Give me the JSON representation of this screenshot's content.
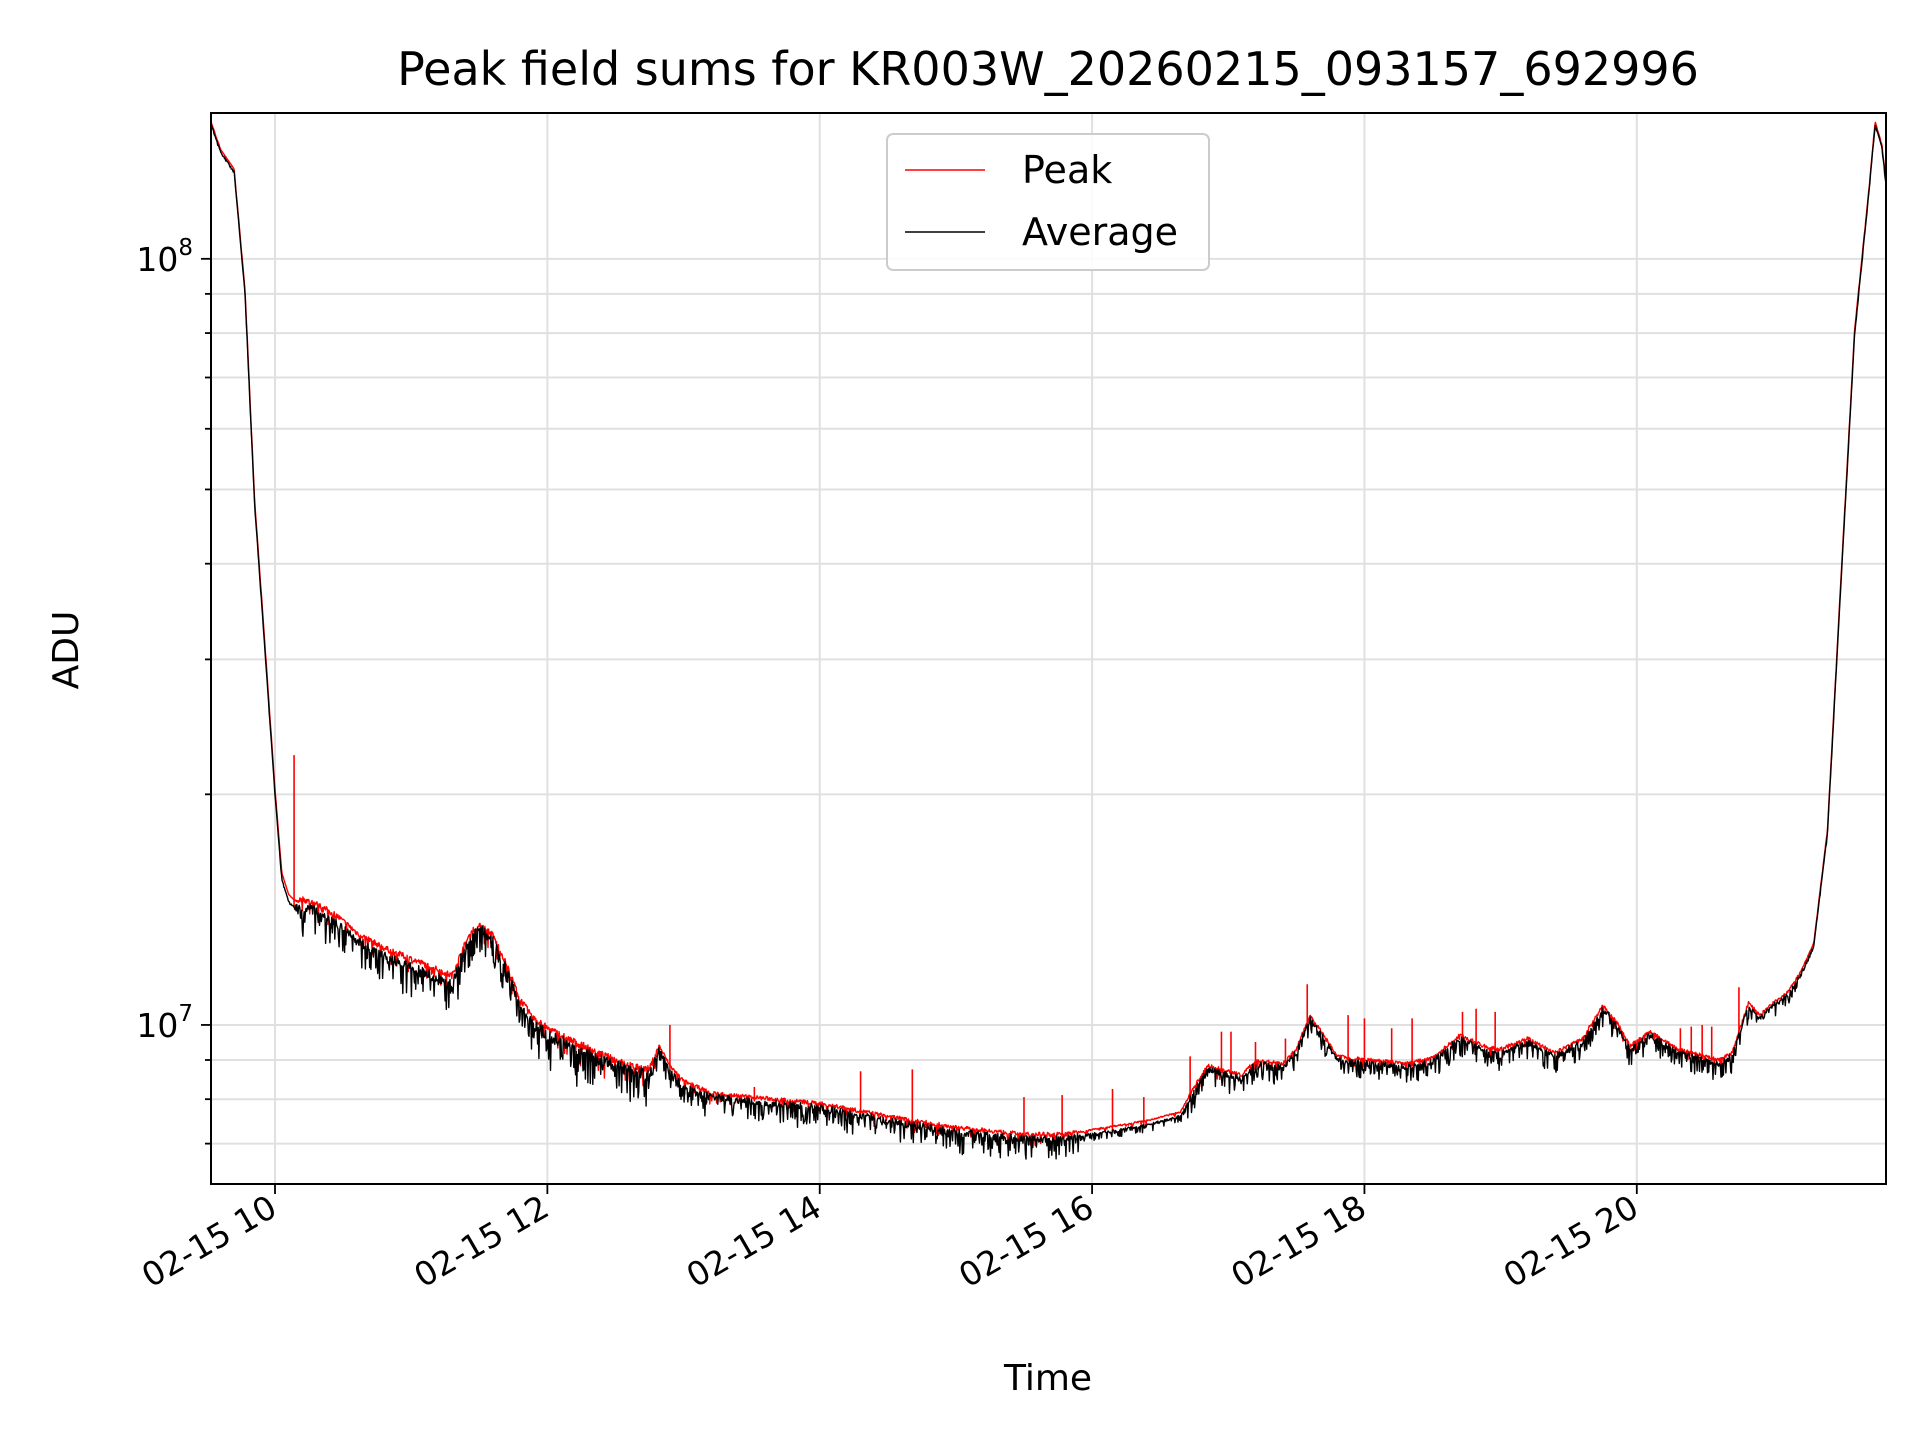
{
  "chart_data": {
    "type": "line",
    "title": "Peak field sums for KR003W_20260215_093157_692996",
    "xlabel": "Time",
    "ylabel": "ADU",
    "yscale": "log",
    "xlim_hours": [
      9.53,
      21.83
    ],
    "ylim": [
      6200000,
      155000000
    ],
    "x_ticks": [
      {
        "value": 10,
        "label": "02-15 10"
      },
      {
        "value": 12,
        "label": "02-15 12"
      },
      {
        "value": 14,
        "label": "02-15 14"
      },
      {
        "value": 16,
        "label": "02-15 16"
      },
      {
        "value": 18,
        "label": "02-15 18"
      },
      {
        "value": 20,
        "label": "02-15 20"
      }
    ],
    "y_major_ticks": [
      {
        "value": 10000000,
        "base": "10",
        "exp": "7"
      },
      {
        "value": 100000000,
        "base": "10",
        "exp": "8"
      }
    ],
    "legend": {
      "position": "upper center",
      "entries": [
        "Peak",
        "Average"
      ]
    },
    "grid": true,
    "colors": {
      "peak": "#ff0000",
      "average": "#000000",
      "grid": "#e0e0e0"
    },
    "series": [
      {
        "name": "Average",
        "x_hours": [
          9.53,
          9.6,
          9.7,
          9.78,
          9.85,
          9.92,
          10.0,
          10.05,
          10.1,
          10.15,
          10.2,
          10.3,
          10.45,
          10.6,
          10.8,
          11.0,
          11.2,
          11.3,
          11.38,
          11.45,
          11.52,
          11.6,
          11.7,
          11.8,
          11.9,
          12.0,
          12.2,
          12.4,
          12.6,
          12.75,
          12.82,
          12.9,
          13.0,
          13.2,
          13.5,
          14.0,
          14.5,
          15.0,
          15.5,
          15.8,
          16.0,
          16.4,
          16.65,
          16.75,
          16.85,
          17.0,
          17.1,
          17.2,
          17.4,
          17.5,
          17.6,
          17.7,
          17.8,
          17.9,
          18.1,
          18.3,
          18.5,
          18.7,
          18.9,
          19.0,
          19.2,
          19.4,
          19.6,
          19.75,
          19.85,
          19.95,
          20.1,
          20.3,
          20.5,
          20.6,
          20.7,
          20.75,
          20.82,
          20.9,
          21.0,
          21.1,
          21.2,
          21.3,
          21.4,
          21.5,
          21.6,
          21.7,
          21.75,
          21.8,
          21.83
        ],
        "y": [
          150000000,
          138000000,
          130000000,
          90000000,
          48000000,
          32000000,
          20000000,
          15500000,
          14500000,
          14200000,
          14300000,
          14100000,
          13600000,
          12900000,
          12300000,
          11900000,
          11500000,
          11300000,
          12400000,
          13100000,
          13300000,
          12900000,
          11800000,
          10600000,
          10000000,
          9700000,
          9350000,
          9000000,
          8700000,
          8600000,
          9300000,
          8700000,
          8300000,
          8050000,
          7950000,
          7800000,
          7500000,
          7250000,
          7100000,
          7100000,
          7200000,
          7400000,
          7600000,
          8200000,
          8750000,
          8600000,
          8500000,
          8900000,
          8800000,
          9200000,
          10200000,
          9600000,
          9000000,
          8950000,
          8900000,
          8800000,
          8950000,
          9600000,
          9250000,
          9200000,
          9500000,
          9100000,
          9500000,
          10500000,
          10000000,
          9300000,
          9700000,
          9200000,
          9000000,
          8900000,
          9100000,
          9700000,
          10600000,
          10200000,
          10600000,
          10900000,
          11600000,
          12700000,
          17800000,
          38000000,
          80000000,
          120000000,
          150000000,
          140000000,
          125000000
        ]
      },
      {
        "name": "Peak",
        "x_hours": [
          9.53,
          9.6,
          9.7,
          9.78,
          9.85,
          9.92,
          10.0,
          10.05,
          10.1,
          10.15,
          10.2,
          10.3,
          10.45,
          10.6,
          10.8,
          11.0,
          11.2,
          11.3,
          11.38,
          11.45,
          11.52,
          11.6,
          11.7,
          11.8,
          11.9,
          12.0,
          12.2,
          12.4,
          12.6,
          12.75,
          12.82,
          12.9,
          13.0,
          13.2,
          13.5,
          14.0,
          14.5,
          15.0,
          15.5,
          15.8,
          16.0,
          16.4,
          16.65,
          16.75,
          16.85,
          17.0,
          17.1,
          17.2,
          17.4,
          17.5,
          17.6,
          17.7,
          17.8,
          17.9,
          18.1,
          18.3,
          18.5,
          18.7,
          18.9,
          19.0,
          19.2,
          19.4,
          19.6,
          19.75,
          19.85,
          19.95,
          20.1,
          20.3,
          20.5,
          20.6,
          20.7,
          20.75,
          20.82,
          20.9,
          21.0,
          21.1,
          21.2,
          21.3,
          21.4,
          21.5,
          21.6,
          21.7,
          21.75,
          21.8,
          21.83
        ],
        "y": [
          151000000,
          139000000,
          131000000,
          91000000,
          48500000,
          32500000,
          20300000,
          15800000,
          14800000,
          14500000,
          14600000,
          14400000,
          13900000,
          13200000,
          12600000,
          12200000,
          11800000,
          11600000,
          12600000,
          13300000,
          13500000,
          13100000,
          12000000,
          10800000,
          10200000,
          9900000,
          9500000,
          9150000,
          8850000,
          8750000,
          9400000,
          8850000,
          8450000,
          8150000,
          8050000,
          7900000,
          7600000,
          7350000,
          7200000,
          7200000,
          7300000,
          7500000,
          7700000,
          8300000,
          8850000,
          8700000,
          8600000,
          9000000,
          8900000,
          9300000,
          10300000,
          9700000,
          9100000,
          9050000,
          9000000,
          8900000,
          9050000,
          9700000,
          9350000,
          9300000,
          9600000,
          9200000,
          9600000,
          10600000,
          10100000,
          9400000,
          9800000,
          9300000,
          9100000,
          9000000,
          9200000,
          9800000,
          10700000,
          10300000,
          10700000,
          11000000,
          11700000,
          12800000,
          18000000,
          38500000,
          81000000,
          121000000,
          151000000,
          141000000,
          126000000
        ]
      }
    ],
    "peak_spikes": [
      {
        "x": 10.14,
        "y": 22500000
      },
      {
        "x": 12.9,
        "y": 10000000
      },
      {
        "x": 13.52,
        "y": 8300000
      },
      {
        "x": 14.3,
        "y": 8700000
      },
      {
        "x": 14.68,
        "y": 8750000
      },
      {
        "x": 15.5,
        "y": 8050000
      },
      {
        "x": 15.78,
        "y": 8100000
      },
      {
        "x": 16.15,
        "y": 8250000
      },
      {
        "x": 16.38,
        "y": 8050000
      },
      {
        "x": 16.72,
        "y": 9100000
      },
      {
        "x": 16.95,
        "y": 9800000
      },
      {
        "x": 17.02,
        "y": 9800000
      },
      {
        "x": 17.2,
        "y": 9500000
      },
      {
        "x": 17.42,
        "y": 9600000
      },
      {
        "x": 17.58,
        "y": 11300000
      },
      {
        "x": 17.88,
        "y": 10300000
      },
      {
        "x": 18.0,
        "y": 10200000
      },
      {
        "x": 18.2,
        "y": 9900000
      },
      {
        "x": 18.35,
        "y": 10200000
      },
      {
        "x": 18.72,
        "y": 10400000
      },
      {
        "x": 18.82,
        "y": 10500000
      },
      {
        "x": 18.96,
        "y": 10400000
      },
      {
        "x": 20.32,
        "y": 9900000
      },
      {
        "x": 20.4,
        "y": 9950000
      },
      {
        "x": 20.48,
        "y": 10000000
      },
      {
        "x": 20.55,
        "y": 9950000
      },
      {
        "x": 20.75,
        "y": 11200000
      }
    ]
  }
}
